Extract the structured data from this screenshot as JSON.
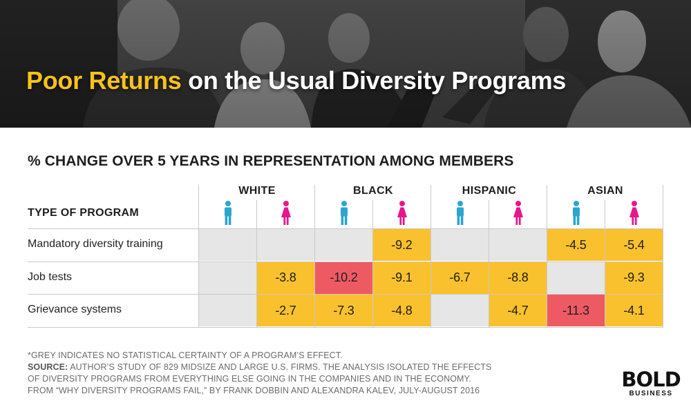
{
  "banner": {
    "title_highlight": "Poor Returns",
    "title_rest": "on the Usual Diversity Programs"
  },
  "colors": {
    "highlight": "#f7c21c",
    "significant": "#f9c12d",
    "strong": "#ee5a64",
    "not_significant": "#e6e6e6",
    "male_icon": "#2aa6cf",
    "female_icon": "#e8168b"
  },
  "chart_data": {
    "type": "table",
    "title": "% CHANGE OVER 5 YEARS IN REPRESENTATION AMONG MEMBERS",
    "row_header": "TYPE OF PROGRAM",
    "groups": [
      "WHITE",
      "BLACK",
      "HISPANIC",
      "ASIAN"
    ],
    "genders": [
      "male",
      "female"
    ],
    "rows": [
      {
        "program": "Mandatory diversity training",
        "values": [
          null,
          null,
          null,
          -9.2,
          null,
          null,
          -4.5,
          -5.4
        ],
        "labels": [
          "",
          "",
          "",
          "-9.2",
          "",
          "",
          "-4.5",
          "-5.4"
        ],
        "status": [
          "grey",
          "grey",
          "grey",
          "yellow",
          "grey",
          "grey",
          "yellow",
          "yellow"
        ]
      },
      {
        "program": "Job tests",
        "values": [
          null,
          -3.8,
          -10.2,
          -9.1,
          -6.7,
          -8.8,
          null,
          -9.3
        ],
        "labels": [
          "",
          "-3.8",
          "-10.2",
          "-9.1",
          "-6.7",
          "-8.8",
          "",
          "-9.3"
        ],
        "status": [
          "grey",
          "yellow",
          "red",
          "yellow",
          "yellow",
          "yellow",
          "grey",
          "yellow"
        ]
      },
      {
        "program": "Grievance systems",
        "values": [
          null,
          -2.7,
          -7.3,
          -4.8,
          null,
          -4.7,
          -11.3,
          -4.1
        ],
        "labels": [
          "",
          "-2.7",
          "-7.3",
          "-4.8",
          "",
          "-4.7",
          "-11.3",
          "-4.1"
        ],
        "status": [
          "grey",
          "yellow",
          "yellow",
          "yellow",
          "grey",
          "yellow",
          "red",
          "yellow"
        ]
      }
    ]
  },
  "footnote": {
    "line1": "*GREY INDICATES NO STATISTICAL CERTAINTY OF A PROGRAM’S EFFECT.",
    "source_label": "SOURCE:",
    "line2": "AUTHOR’S STUDY OF 829 MIDSIZE AND LARGE U.S. FIRMS. THE ANALYSIS ISOLATED THE EFFECTS",
    "line3": "OF DIVERSITY PROGRAMS FROM EVERYTHING ELSE GOING IN THE COMPANIES AND IN THE ECONOMY.",
    "line4": "FROM “WHY DIVERSITY PROGRAMS FAIL,” BY FRANK DOBBIN AND ALEXANDRA KALEV, JULY-AUGUST 2016"
  },
  "logo": {
    "main": "BOLD",
    "sub": "BUSINESS"
  }
}
